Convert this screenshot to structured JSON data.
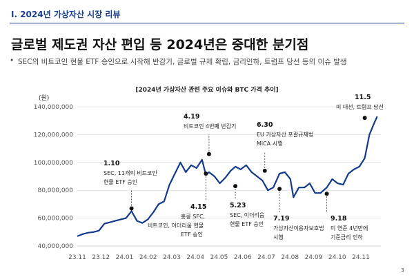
{
  "header": {
    "section": "I. 2024년 가상자산 시장 리뷰",
    "title": "글로벌 제도권 자산 편입 등 2024년은 중대한 분기점",
    "bullet": "SEC의 비트코인 현물 ETF 승인으로 시작해 반감기, 글로벌 규제 확립, 금리인하, 트럼프 당선 등의 이슈 발생",
    "page": "3"
  },
  "colors": {
    "accent": "#1b3f8f",
    "line": "#123a8c"
  },
  "chart_data": {
    "type": "line",
    "title": "[2024년 가상자산 관련 주요 이슈와 BTC 가격 추이]",
    "ylabel": "(원)",
    "ylim": [
      40000000,
      140000000
    ],
    "yticks": [
      40000000,
      60000000,
      80000000,
      100000000,
      120000000,
      140000000
    ],
    "ytick_labels": [
      "40,000,000",
      "60,000,000",
      "80,000,000",
      "100,000,000",
      "120,000,000",
      "140,000,000"
    ],
    "xticks": [
      "23.11",
      "23.12",
      "24.01",
      "24.02",
      "24.03",
      "24.04",
      "24.05",
      "24.06",
      "24.07",
      "24.08",
      "24.09",
      "24.10",
      "24.11"
    ],
    "grid": true,
    "series": [
      {
        "x": [
          "2023-11-01",
          "2023-11-08",
          "2023-11-15",
          "2023-11-22",
          "2023-11-29",
          "2023-12-06",
          "2023-12-13",
          "2023-12-20",
          "2023-12-27",
          "2024-01-03",
          "2024-01-10",
          "2024-01-17",
          "2024-01-24",
          "2024-01-31",
          "2024-02-07",
          "2024-02-14",
          "2024-02-21",
          "2024-02-28",
          "2024-03-06",
          "2024-03-13",
          "2024-03-20",
          "2024-03-27",
          "2024-04-03",
          "2024-04-10",
          "2024-04-15",
          "2024-04-19",
          "2024-04-26",
          "2024-05-03",
          "2024-05-10",
          "2024-05-17",
          "2024-05-23",
          "2024-05-30",
          "2024-06-06",
          "2024-06-13",
          "2024-06-20",
          "2024-06-27",
          "2024-07-04",
          "2024-07-11",
          "2024-07-19",
          "2024-07-26",
          "2024-08-02",
          "2024-08-06",
          "2024-08-13",
          "2024-08-20",
          "2024-08-27",
          "2024-09-03",
          "2024-09-10",
          "2024-09-18",
          "2024-09-25",
          "2024-10-02",
          "2024-10-09",
          "2024-10-16",
          "2024-10-23",
          "2024-10-30",
          "2024-11-06",
          "2024-11-12",
          "2024-11-18",
          "2024-11-22"
        ],
        "y": [
          47000000,
          48500000,
          49500000,
          50000000,
          51000000,
          56000000,
          57000000,
          58000000,
          59000000,
          60000000,
          65000000,
          58000000,
          56500000,
          59000000,
          64000000,
          70000000,
          72000000,
          84000000,
          92000000,
          100000000,
          93000000,
          98000000,
          96000000,
          102000000,
          91000000,
          93000000,
          90000000,
          85000000,
          89000000,
          94000000,
          97000000,
          95000000,
          98000000,
          93000000,
          90000000,
          87000000,
          80000000,
          82000000,
          92000000,
          93000000,
          88000000,
          75000000,
          82000000,
          82000000,
          85000000,
          78000000,
          78000000,
          82000000,
          88000000,
          85000000,
          84000000,
          92000000,
          95000000,
          97000000,
          103000000,
          120000000,
          128000000,
          133000000
        ]
      }
    ],
    "annotations": [
      {
        "x": "2024-01-10",
        "y": 67000000,
        "date": "1.10",
        "text": [
          "SEC, 11개의 비트코인",
          "현물 ETF 승인"
        ]
      },
      {
        "x": "2024-04-19",
        "y": 106000000,
        "date": "4.19",
        "text": [
          "비트코인 4번째 반감기"
        ]
      },
      {
        "x": "2024-04-15",
        "y": 92000000,
        "date": "4.15",
        "text": [
          "홍콩 SFC,",
          "비트코인, 이더리움 현물",
          "ETF 승인"
        ]
      },
      {
        "x": "2024-05-23",
        "y": 83000000,
        "date": "5.23",
        "text": [
          "SEC, 이더리움",
          "현물 ETF 승인"
        ]
      },
      {
        "x": "2024-06-30",
        "y": 94000000,
        "date": "6.30",
        "text": [
          "EU 가상자산 포괄규제법",
          "MiCA 시행"
        ]
      },
      {
        "x": "2024-07-19",
        "y": 81000000,
        "date": "7.19",
        "text": [
          "가상자산이용자보호법",
          "시행"
        ]
      },
      {
        "x": "2024-09-18",
        "y": 77500000,
        "date": "9.18",
        "text": [
          "미 연준 4년만에",
          "기준금리 인하"
        ]
      },
      {
        "x": "2024-11-06",
        "y": 132000000,
        "date": "11.5",
        "text": [
          "미 대선, 트럼프 당선"
        ]
      }
    ]
  }
}
